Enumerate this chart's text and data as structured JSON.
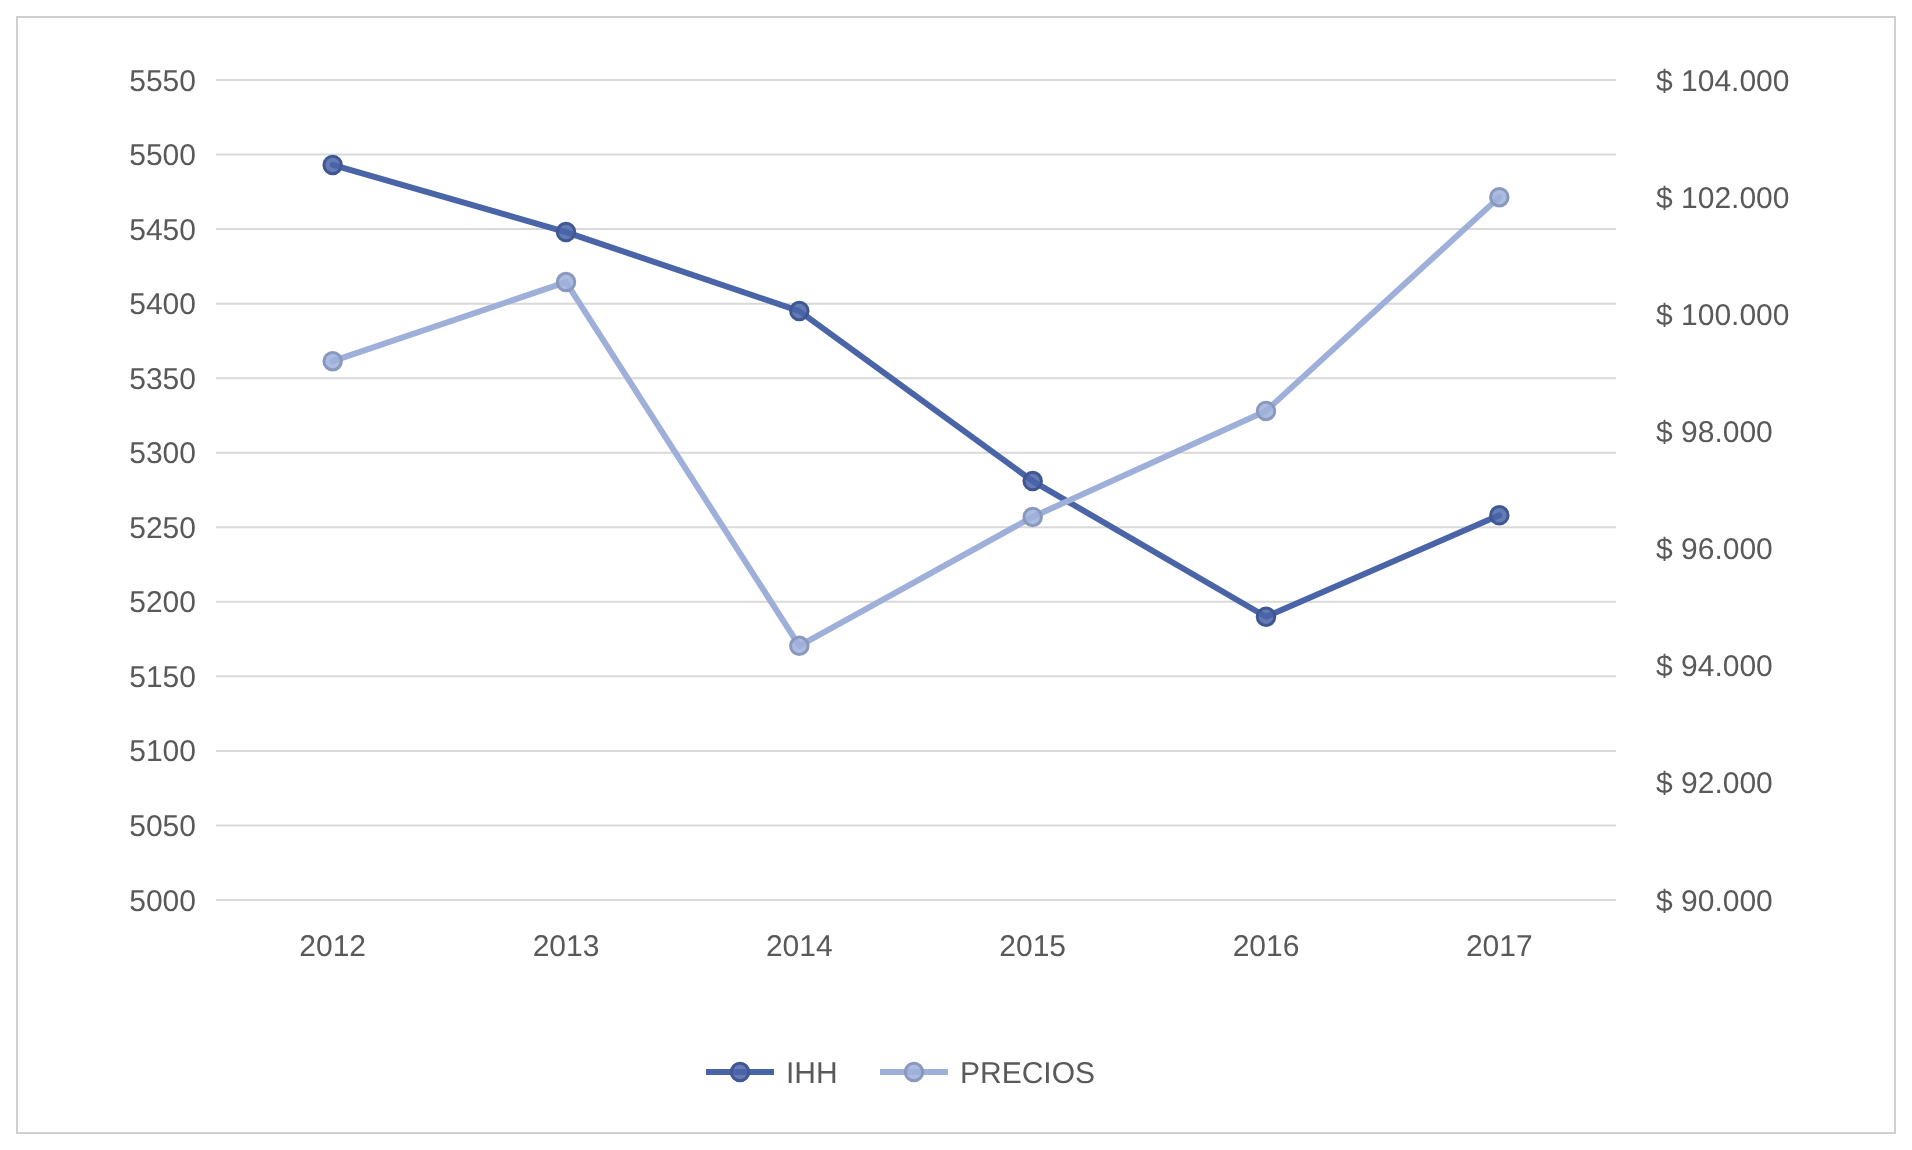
{
  "chart_data": {
    "type": "line",
    "categories": [
      "2012",
      "2013",
      "2014",
      "2015",
      "2016",
      "2017"
    ],
    "series": [
      {
        "name": "IHH",
        "color": "#4a64a8",
        "values": [
          5493,
          5448,
          5395,
          5281,
          5190,
          5258
        ]
      },
      {
        "name": "PRECIOS",
        "color": "#9eb0da",
        "values": [
          99200,
          100550,
          94340,
          96540,
          98350,
          102000
        ],
        "axis": "y2"
      }
    ],
    "ylim": [
      5000,
      5550
    ],
    "yticks": [
      5000,
      5050,
      5100,
      5150,
      5200,
      5250,
      5300,
      5350,
      5400,
      5450,
      5500,
      5550
    ],
    "y2lim": [
      90000,
      104000
    ],
    "y2ticks": [
      {
        "value": 90000,
        "label": "$ 90.000"
      },
      {
        "value": 92000,
        "label": "$ 92.000"
      },
      {
        "value": 94000,
        "label": "$ 94.000"
      },
      {
        "value": 96000,
        "label": "$ 96.000"
      },
      {
        "value": 98000,
        "label": "$ 98.000"
      },
      {
        "value": 100000,
        "label": "$ 100.000"
      },
      {
        "value": 102000,
        "label": "$ 102.000"
      },
      {
        "value": 104000,
        "label": "$ 104.000"
      }
    ],
    "grid": "y",
    "legend": "bottom",
    "marker": "circle",
    "line_style": "solid"
  }
}
